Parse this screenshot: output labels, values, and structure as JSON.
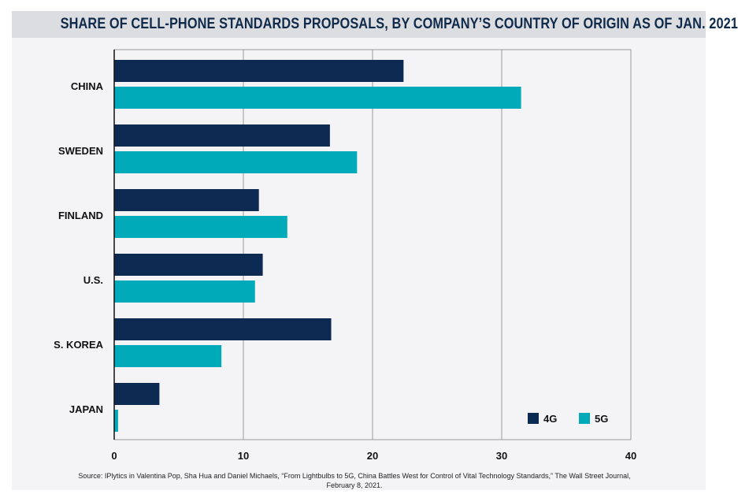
{
  "chart_data": {
    "type": "bar",
    "orientation": "horizontal",
    "title": "SHARE OF CELL-PHONE STANDARDS PROPOSALS, BY COMPANY’S COUNTRY OF ORIGIN AS OF JAN. 2021",
    "categories": [
      "CHINA",
      "SWEDEN",
      "FINLAND",
      "U.S.",
      "S. KOREA",
      "JAPAN"
    ],
    "series": [
      {
        "name": "4G",
        "color": "#0c2a52",
        "values": [
          22.4,
          16.7,
          11.2,
          11.5,
          16.8,
          3.5
        ]
      },
      {
        "name": "5G",
        "color": "#00aab8",
        "values": [
          31.5,
          18.8,
          13.4,
          10.9,
          8.3,
          0.3
        ]
      }
    ],
    "xlim": [
      0,
      40
    ],
    "xticks": [
      0,
      10,
      20,
      30,
      40
    ],
    "grid": true,
    "legend_position": "bottom-right",
    "xlabel": "",
    "ylabel": ""
  },
  "source": "Source: IPlytics in Valentina Pop, Sha Hua and Daniel Michaels, “From Lightbulbs to 5G, China Battles West for Control of Vital Technology Standards,” The Wall Street Journal, February 8, 2021."
}
